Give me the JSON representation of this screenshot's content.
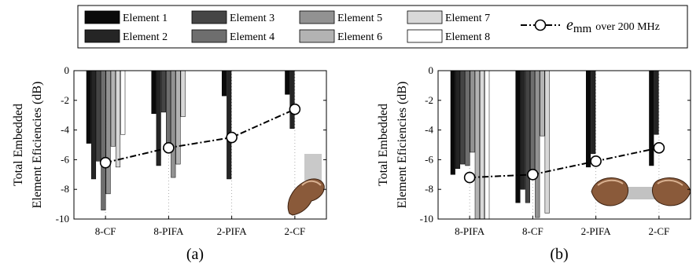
{
  "legend": {
    "entries": [
      "Element 1",
      "Element 2",
      "Element 3",
      "Element 4",
      "Element 5",
      "Element 6",
      "Element 7",
      "Element 8"
    ],
    "emm_symbol": "e",
    "emm_subscript": "mm",
    "emm_suffix": "over 200 MHz"
  },
  "colors": {
    "elements": [
      "#0a0a0a",
      "#252525",
      "#454545",
      "#6e6e6e",
      "#929292",
      "#b3b3b3",
      "#d8d8d8",
      "#ffffff"
    ],
    "emm_line": "#000000"
  },
  "chart_data": [
    {
      "type": "bar",
      "caption": "(a)",
      "ylabel_line1": "Total Embedded",
      "ylabel_line2": "Element Eficiencies (dB)",
      "ylim": [
        -10,
        0
      ],
      "yticks": [
        0,
        -2,
        -4,
        -6,
        -8,
        -10
      ],
      "yticklabels": [
        "0",
        "-2",
        "-4",
        "-6",
        "-8",
        "-10"
      ],
      "categories": [
        "8-CF",
        "8-PIFA",
        "2-PIFA",
        "2-CF"
      ],
      "series": [
        {
          "name": "Element 1",
          "values": [
            -4.9,
            -2.9,
            -1.7,
            -1.6
          ]
        },
        {
          "name": "Element 2",
          "values": [
            -7.3,
            -6.4,
            -7.3,
            -3.9
          ]
        },
        {
          "name": "Element 3",
          "values": [
            -6.1,
            -2.8,
            null,
            null
          ]
        },
        {
          "name": "Element 4",
          "values": [
            -9.4,
            -5.1,
            null,
            null
          ]
        },
        {
          "name": "Element 5",
          "values": [
            -8.3,
            -7.2,
            null,
            null
          ]
        },
        {
          "name": "Element 6",
          "values": [
            -5.1,
            -6.3,
            null,
            null
          ]
        },
        {
          "name": "Element 7",
          "values": [
            -6.5,
            -3.1,
            null,
            null
          ]
        },
        {
          "name": "Element 8",
          "values": [
            -4.3,
            null,
            null,
            null
          ]
        }
      ],
      "emm": [
        -6.2,
        -5.2,
        -4.5,
        -2.6
      ]
    },
    {
      "type": "bar",
      "caption": "(b)",
      "ylabel_line1": "Total Embedded",
      "ylabel_line2": "Element Eficiencies (dB)",
      "ylim": [
        -10,
        0
      ],
      "yticks": [
        0,
        -2,
        -4,
        -6,
        -8,
        -10
      ],
      "yticklabels": [
        "0",
        "-2",
        "-4",
        "-6",
        "-8",
        "-10"
      ],
      "categories": [
        "8-PIFA",
        "8-CF",
        "2-PIFA",
        "2-CF"
      ],
      "series": [
        {
          "name": "Element 1",
          "values": [
            -7.0,
            -8.9,
            -6.5,
            -6.4
          ]
        },
        {
          "name": "Element 2",
          "values": [
            -6.6,
            -8.0,
            -5.6,
            -4.3
          ]
        },
        {
          "name": "Element 3",
          "values": [
            -6.3,
            -8.9,
            null,
            null
          ]
        },
        {
          "name": "Element 4",
          "values": [
            -6.4,
            -7.0,
            null,
            null
          ]
        },
        {
          "name": "Element 5",
          "values": [
            -5.5,
            -9.9,
            null,
            null
          ]
        },
        {
          "name": "Element 6",
          "values": [
            -10,
            -4.4,
            null,
            null
          ]
        },
        {
          "name": "Element 7",
          "values": [
            -10,
            -9.6,
            null,
            null
          ]
        },
        {
          "name": "Element 8",
          "values": [
            -10,
            null,
            null,
            null
          ]
        }
      ],
      "emm": [
        -7.2,
        -7.0,
        -6.1,
        -5.2
      ]
    }
  ]
}
